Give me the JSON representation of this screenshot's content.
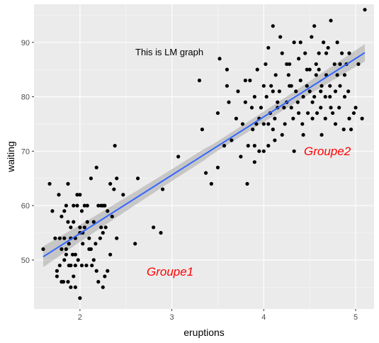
{
  "chart_data": {
    "type": "scatter",
    "title": "",
    "xlabel": "eruptions",
    "ylabel": "waiting",
    "xlim": [
      1.5,
      5.2
    ],
    "ylim": [
      41,
      97
    ],
    "xticks": [
      2,
      3,
      4,
      5
    ],
    "yticks": [
      50,
      60,
      70,
      80,
      90
    ],
    "xtick_labels": [
      "2",
      "3",
      "4",
      "5"
    ],
    "ytick_labels": [
      "50",
      "60",
      "70",
      "80",
      "90"
    ],
    "grid": true,
    "annotation": "This is LM graph",
    "group_labels": [
      "Groupe1",
      "Groupe2"
    ],
    "colors": {
      "panel": "#ebebeb",
      "points": "#000000",
      "fit_line": "#3366ff",
      "ribbon": "#999999",
      "group_label": "#ff0000"
    },
    "fit": {
      "method": "lm",
      "x": [
        1.6,
        5.1
      ],
      "y": [
        50.6,
        88.1
      ],
      "se_halfwidth": [
        1.2,
        1.0
      ]
    },
    "points": [
      [
        1.6,
        52
      ],
      [
        1.67,
        64
      ],
      [
        1.7,
        59
      ],
      [
        1.73,
        54
      ],
      [
        1.75,
        48
      ],
      [
        1.75,
        47
      ],
      [
        1.77,
        62
      ],
      [
        1.78,
        54
      ],
      [
        1.8,
        46
      ],
      [
        1.8,
        52
      ],
      [
        1.8,
        58
      ],
      [
        1.82,
        46
      ],
      [
        1.83,
        54
      ],
      [
        1.83,
        59
      ],
      [
        1.85,
        60
      ],
      [
        1.85,
        52
      ],
      [
        1.85,
        51
      ],
      [
        1.87,
        64
      ],
      [
        1.87,
        57
      ],
      [
        1.87,
        46
      ],
      [
        1.88,
        49
      ],
      [
        1.88,
        53
      ],
      [
        1.9,
        45
      ],
      [
        1.9,
        49
      ],
      [
        1.9,
        54
      ],
      [
        1.92,
        51
      ],
      [
        1.93,
        57
      ],
      [
        1.93,
        47
      ],
      [
        1.95,
        45
      ],
      [
        1.95,
        49
      ],
      [
        1.95,
        51
      ],
      [
        1.95,
        54
      ],
      [
        1.97,
        60
      ],
      [
        1.98,
        50
      ],
      [
        2.0,
        55
      ],
      [
        2.0,
        56
      ],
      [
        2.0,
        62
      ],
      [
        2.0,
        43
      ],
      [
        2.02,
        49
      ],
      [
        2.02,
        59
      ],
      [
        2.03,
        53
      ],
      [
        2.03,
        55
      ],
      [
        2.05,
        56
      ],
      [
        2.07,
        49
      ],
      [
        2.08,
        57
      ],
      [
        2.08,
        60
      ],
      [
        2.1,
        54
      ],
      [
        2.1,
        52
      ],
      [
        2.12,
        65
      ],
      [
        2.13,
        49
      ],
      [
        2.15,
        57
      ],
      [
        2.17,
        53
      ],
      [
        2.18,
        48
      ],
      [
        2.18,
        67
      ],
      [
        2.2,
        60
      ],
      [
        2.2,
        46
      ],
      [
        2.22,
        54
      ],
      [
        2.23,
        56
      ],
      [
        2.23,
        60
      ],
      [
        2.25,
        55
      ],
      [
        2.25,
        45
      ],
      [
        2.27,
        47
      ],
      [
        2.27,
        60
      ],
      [
        2.3,
        59
      ],
      [
        2.3,
        48
      ],
      [
        2.33,
        64
      ],
      [
        2.33,
        51
      ],
      [
        2.35,
        58
      ],
      [
        2.37,
        63
      ],
      [
        2.38,
        71
      ],
      [
        2.4,
        65
      ],
      [
        2.4,
        54
      ],
      [
        2.47,
        62
      ],
      [
        2.6,
        53
      ],
      [
        2.63,
        65
      ],
      [
        2.8,
        56
      ],
      [
        2.88,
        55
      ],
      [
        2.9,
        63
      ],
      [
        3.07,
        69
      ],
      [
        3.3,
        83
      ],
      [
        3.33,
        74
      ],
      [
        3.37,
        66
      ],
      [
        3.43,
        64
      ],
      [
        3.5,
        67
      ],
      [
        3.5,
        77
      ],
      [
        3.52,
        87
      ],
      [
        3.57,
        71
      ],
      [
        3.6,
        82
      ],
      [
        3.6,
        85
      ],
      [
        3.62,
        79
      ],
      [
        3.65,
        72
      ],
      [
        3.7,
        76
      ],
      [
        3.72,
        81
      ],
      [
        3.75,
        69
      ],
      [
        3.77,
        75
      ],
      [
        3.8,
        79
      ],
      [
        3.8,
        83
      ],
      [
        3.82,
        64
      ],
      [
        3.83,
        71
      ],
      [
        3.85,
        83
      ],
      [
        3.87,
        78
      ],
      [
        3.88,
        74
      ],
      [
        3.9,
        71
      ],
      [
        3.9,
        80
      ],
      [
        3.92,
        75
      ],
      [
        3.93,
        85
      ],
      [
        3.95,
        70
      ],
      [
        3.97,
        78
      ],
      [
        4.0,
        82
      ],
      [
        4.0,
        75
      ],
      [
        4.02,
        86
      ],
      [
        4.03,
        80
      ],
      [
        4.05,
        75
      ],
      [
        4.07,
        77
      ],
      [
        4.08,
        82
      ],
      [
        4.1,
        81
      ],
      [
        4.1,
        93
      ],
      [
        4.12,
        76
      ],
      [
        4.13,
        84
      ],
      [
        4.15,
        79
      ],
      [
        4.17,
        81
      ],
      [
        4.18,
        91
      ],
      [
        4.2,
        88
      ],
      [
        4.22,
        78
      ],
      [
        4.23,
        75
      ],
      [
        4.25,
        79
      ],
      [
        4.27,
        84
      ],
      [
        4.28,
        82
      ],
      [
        4.3,
        78
      ],
      [
        4.3,
        82
      ],
      [
        4.32,
        76
      ],
      [
        4.33,
        90
      ],
      [
        4.35,
        81
      ],
      [
        4.37,
        79
      ],
      [
        4.38,
        87
      ],
      [
        4.4,
        83
      ],
      [
        4.42,
        75
      ],
      [
        4.43,
        73
      ],
      [
        4.45,
        88
      ],
      [
        4.47,
        85
      ],
      [
        4.48,
        77
      ],
      [
        4.5,
        81
      ],
      [
        4.5,
        85
      ],
      [
        4.52,
        91
      ],
      [
        4.53,
        79
      ],
      [
        4.55,
        80
      ],
      [
        4.57,
        84
      ],
      [
        4.58,
        77
      ],
      [
        4.6,
        85
      ],
      [
        4.6,
        88
      ],
      [
        4.62,
        78
      ],
      [
        4.63,
        82
      ],
      [
        4.65,
        90
      ],
      [
        4.67,
        80
      ],
      [
        4.68,
        84
      ],
      [
        4.7,
        89
      ],
      [
        4.72,
        80
      ],
      [
        4.73,
        94
      ],
      [
        4.75,
        77
      ],
      [
        4.77,
        86
      ],
      [
        4.78,
        81
      ],
      [
        4.8,
        84
      ],
      [
        4.82,
        78
      ],
      [
        4.83,
        82
      ],
      [
        4.85,
        88
      ],
      [
        4.87,
        74
      ],
      [
        4.88,
        80
      ],
      [
        4.9,
        86
      ],
      [
        4.92,
        81
      ],
      [
        4.93,
        88
      ],
      [
        4.95,
        74
      ],
      [
        4.98,
        77
      ],
      [
        5.0,
        78
      ],
      [
        5.03,
        86
      ],
      [
        5.07,
        76
      ],
      [
        5.1,
        96
      ],
      [
        3.95,
        76
      ],
      [
        4.05,
        71
      ],
      [
        4.12,
        72
      ],
      [
        4.2,
        73
      ],
      [
        4.25,
        86
      ],
      [
        4.33,
        70
      ],
      [
        4.38,
        77
      ],
      [
        4.43,
        80
      ],
      [
        4.47,
        82
      ],
      [
        4.53,
        76
      ],
      [
        4.57,
        86
      ],
      [
        4.63,
        73
      ],
      [
        4.68,
        88
      ],
      [
        4.73,
        78
      ],
      [
        4.78,
        75
      ],
      [
        4.83,
        86
      ],
      [
        4.88,
        84
      ],
      [
        4.93,
        76
      ],
      [
        4.4,
        90
      ],
      [
        4.55,
        93
      ],
      [
        4.1,
        74
      ],
      [
        4.15,
        78
      ],
      [
        4.28,
        86
      ],
      [
        4.62,
        81
      ],
      [
        4.67,
        76
      ],
      [
        4.72,
        82
      ],
      [
        4.8,
        90
      ],
      [
        4.05,
        89
      ],
      [
        3.9,
        68
      ],
      [
        4.0,
        70
      ],
      [
        1.93,
        60
      ],
      [
        2.05,
        60
      ],
      [
        1.78,
        49
      ],
      [
        2.12,
        52
      ],
      [
        2.28,
        56
      ],
      [
        1.83,
        50
      ],
      [
        1.97,
        62
      ],
      [
        2.15,
        50
      ],
      [
        1.9,
        56
      ],
      [
        2.25,
        60
      ]
    ]
  }
}
